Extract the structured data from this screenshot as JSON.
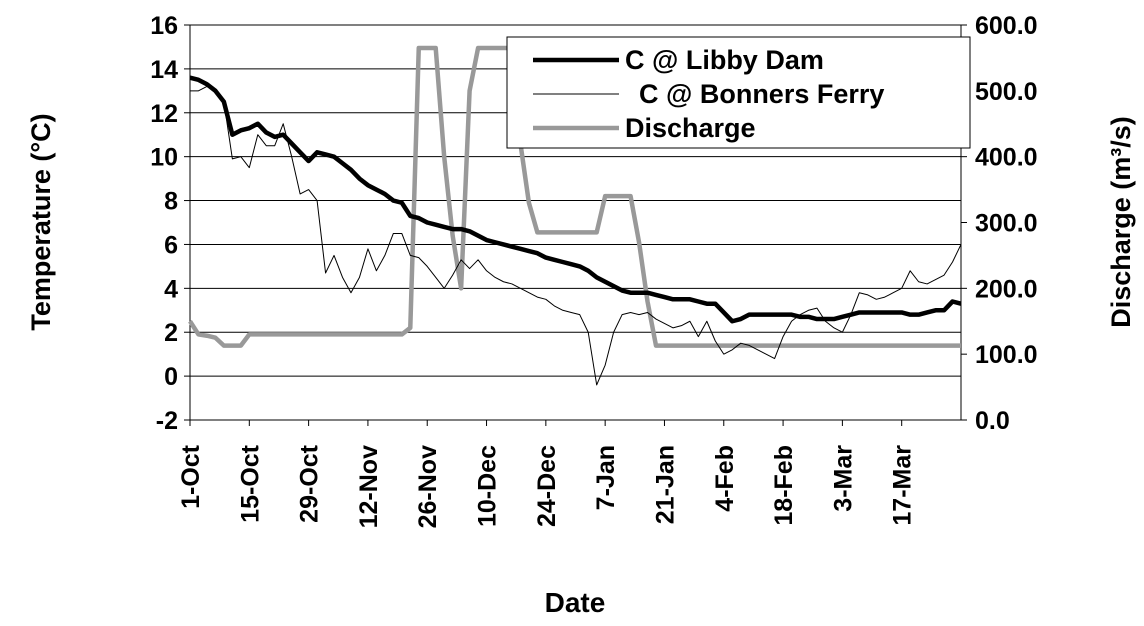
{
  "chart_data": {
    "type": "line",
    "x_label": "Date",
    "y_label": "Temperature (°C)",
    "y2_label": "Discharge (m³/s)",
    "categories": [
      "1-Oct",
      null,
      null,
      null,
      null,
      null,
      null,
      "15-Oct",
      null,
      null,
      null,
      null,
      null,
      null,
      "29-Oct",
      null,
      null,
      null,
      null,
      null,
      null,
      "12-Nov",
      null,
      null,
      null,
      null,
      null,
      null,
      "26-Nov",
      null,
      null,
      null,
      null,
      null,
      null,
      "10-Dec",
      null,
      null,
      null,
      null,
      null,
      null,
      "24-Dec",
      null,
      null,
      null,
      null,
      null,
      null,
      "7-Jan",
      null,
      null,
      null,
      null,
      null,
      null,
      "21-Jan",
      null,
      null,
      null,
      null,
      null,
      null,
      "4-Feb",
      null,
      null,
      null,
      null,
      null,
      null,
      "18-Feb",
      null,
      null,
      null,
      null,
      null,
      null,
      "3-Mar",
      null,
      null,
      null,
      null,
      null,
      null,
      "17-Mar",
      null,
      null,
      null,
      null,
      null,
      null,
      null
    ],
    "series": [
      {
        "name": "C @ Libby Dam",
        "color": "#000000",
        "values": [
          13.6,
          13.5,
          13.3,
          13.0,
          12.5,
          11.0,
          11.2,
          11.3,
          11.5,
          11.1,
          10.9,
          11.0,
          10.6,
          10.2,
          9.8,
          10.2,
          10.1,
          10.0,
          9.7,
          9.4,
          9.0,
          8.7,
          8.5,
          8.3,
          8.0,
          7.9,
          7.3,
          7.2,
          7.0,
          6.9,
          6.8,
          6.7,
          6.7,
          6.6,
          6.4,
          6.2,
          6.1,
          6.0,
          5.9,
          5.8,
          5.7,
          5.6,
          5.4,
          5.3,
          5.2,
          5.1,
          5.0,
          4.8,
          4.5,
          4.3,
          4.1,
          3.9,
          3.8,
          3.8,
          3.8,
          3.7,
          3.6,
          3.5,
          3.5,
          3.5,
          3.4,
          3.3,
          3.3,
          2.9,
          2.5,
          2.6,
          2.8,
          2.8,
          2.8,
          2.8,
          2.8,
          2.8,
          2.7,
          2.7,
          2.6,
          2.6,
          2.6,
          2.7,
          2.8,
          2.9,
          2.9,
          2.9,
          2.9,
          2.9,
          2.9,
          2.8,
          2.8,
          2.9,
          3.0,
          3.0,
          3.4,
          3.3
        ]
      },
      {
        "name": "C @ Bonners Ferry",
        "color": "#000000",
        "values": [
          13.0,
          13.0,
          13.2,
          13.0,
          12.5,
          9.9,
          10.0,
          9.5,
          11.0,
          10.5,
          10.5,
          11.5,
          10.0,
          8.3,
          8.5,
          8.0,
          4.7,
          5.5,
          4.5,
          3.8,
          4.5,
          5.8,
          4.8,
          5.5,
          6.5,
          6.5,
          5.5,
          5.4,
          5.0,
          4.5,
          4.0,
          4.6,
          5.3,
          4.9,
          5.3,
          4.8,
          4.5,
          4.3,
          4.2,
          4.0,
          3.8,
          3.6,
          3.5,
          3.2,
          3.0,
          2.9,
          2.8,
          2.0,
          -0.4,
          0.5,
          2.0,
          2.8,
          2.9,
          2.8,
          2.9,
          2.6,
          2.4,
          2.2,
          2.3,
          2.5,
          1.8,
          2.5,
          1.6,
          1.0,
          1.2,
          1.5,
          1.4,
          1.2,
          1.0,
          0.8,
          1.8,
          2.5,
          2.8,
          3.0,
          3.1,
          2.5,
          2.2,
          2.0,
          2.8,
          3.8,
          3.7,
          3.5,
          3.6,
          3.8,
          4.0,
          4.8,
          4.3,
          4.2,
          4.4,
          4.6,
          5.2,
          6.0
        ]
      },
      {
        "name": "Discharge",
        "color": "#999999",
        "axis": "y2",
        "values": [
          150,
          130,
          128,
          125,
          113,
          113,
          113,
          130,
          130,
          130,
          130,
          130,
          130,
          130,
          130,
          130,
          130,
          130,
          130,
          130,
          130,
          130,
          130,
          130,
          130,
          130,
          140,
          565,
          565,
          565,
          400,
          280,
          200,
          500,
          565,
          565,
          565,
          565,
          565,
          420,
          330,
          285,
          285,
          285,
          285,
          285,
          285,
          285,
          285,
          340,
          340,
          340,
          340,
          270,
          180,
          113,
          113,
          113,
          113,
          113,
          113,
          113,
          113,
          113,
          113,
          113,
          113,
          113,
          113,
          113,
          113,
          113,
          113,
          113,
          113,
          113,
          113,
          113,
          113,
          113,
          113,
          113,
          113,
          113,
          113,
          113,
          113,
          113,
          113,
          113,
          113,
          113
        ]
      }
    ],
    "ylim": [
      -2,
      16
    ],
    "yticks": [
      -2,
      0,
      2,
      4,
      6,
      8,
      10,
      12,
      14,
      16
    ],
    "y2lim": [
      0,
      600
    ],
    "y2ticks": [
      {
        "value": 0,
        "label": "0.0"
      },
      {
        "value": 100,
        "label": "100.0"
      },
      {
        "value": 200,
        "label": "200.0"
      },
      {
        "value": 300,
        "label": "300.0"
      },
      {
        "value": 400,
        "label": "400.0"
      },
      {
        "value": 500,
        "label": "500.0"
      },
      {
        "value": 600,
        "label": "600.0"
      }
    ],
    "grid": true,
    "legend": "top-right"
  }
}
